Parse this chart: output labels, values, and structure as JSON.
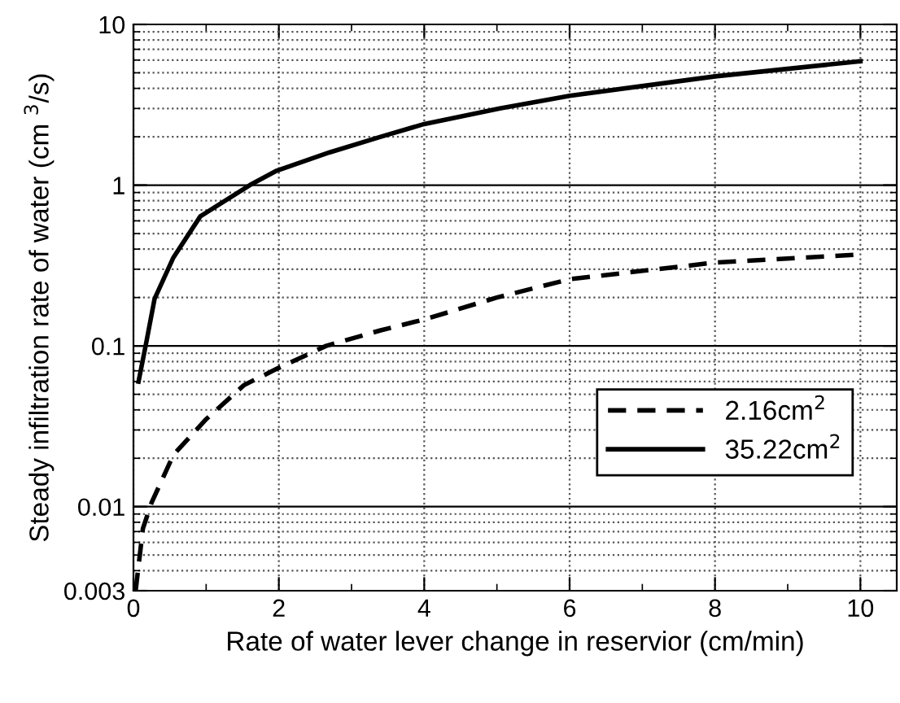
{
  "chart_data": {
    "type": "line",
    "xlabel": "Rate of water lever change in reservior (cm/min)",
    "ylabel": "Steady infiltration rate of water (cm $^{3}$/s)",
    "log": "y",
    "xlim": [
      0,
      10.5
    ],
    "xticks": [
      0,
      2,
      4,
      6,
      8,
      10
    ],
    "ylim": [
      0.003,
      10
    ],
    "yticks": [
      0.003,
      0.01,
      0.1,
      1,
      10
    ],
    "grid": true,
    "legend": "lower right",
    "series": [
      {
        "name": "2.16cm$^{2}$",
        "color": "#000000",
        "line_style": "dashed",
        "x": [
          0.03,
          0.13,
          0.25,
          0.55,
          1.0,
          1.52,
          1.97,
          2.65,
          3.4,
          4.0,
          5.0,
          6.0,
          8.0,
          10.0
        ],
        "values": [
          0.003,
          0.0073,
          0.0106,
          0.021,
          0.035,
          0.057,
          0.072,
          0.1,
          0.125,
          0.146,
          0.2,
          0.26,
          0.33,
          0.37
        ]
      },
      {
        "name": "35.22cm$^{2}$",
        "color": "#000000",
        "line_style": "solid",
        "x": [
          0.07,
          0.18,
          0.29,
          0.55,
          0.92,
          1.6,
          1.97,
          2.7,
          3.4,
          4.0,
          5.04,
          6.0,
          8.0,
          10.0
        ],
        "values": [
          0.06,
          0.107,
          0.196,
          0.355,
          0.64,
          1.0,
          1.23,
          1.6,
          2.0,
          2.4,
          3.0,
          3.6,
          4.75,
          5.9
        ]
      }
    ]
  }
}
